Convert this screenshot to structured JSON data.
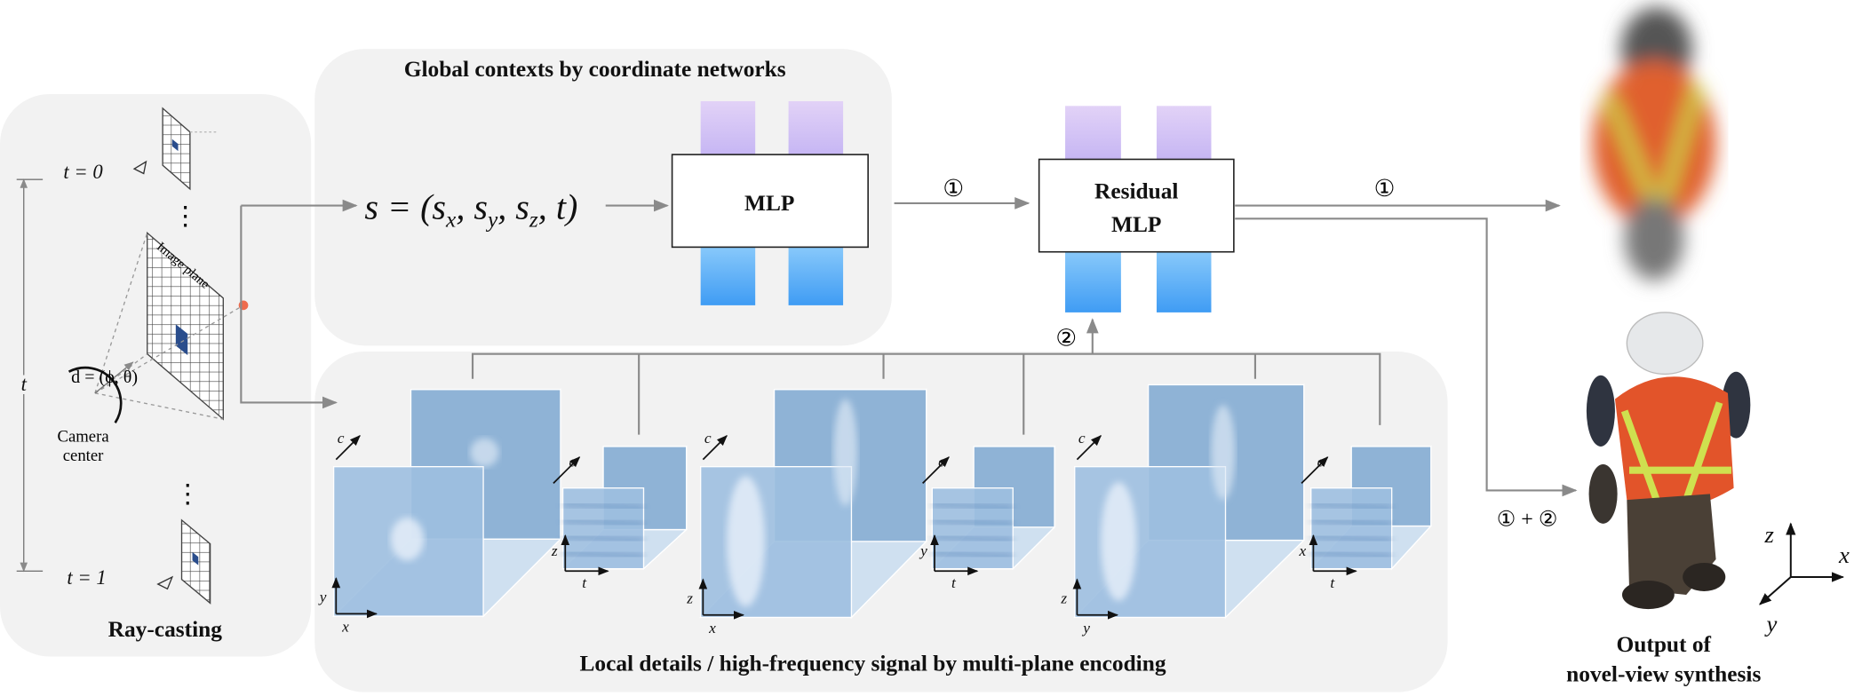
{
  "panels": {
    "global": "Global contexts by coordinate networks",
    "raycast": "Ray-casting",
    "local": "Local details / high-frequency signal by multi-plane encoding"
  },
  "formula": [
    "s = (s",
    "x",
    ", s",
    "y",
    ", s",
    "z",
    ", t)"
  ],
  "mlp": "MLP",
  "residual_mlp": [
    "Residual",
    "MLP"
  ],
  "arrows": {
    "mlp_to_residual": "①",
    "residual_to_output": "①",
    "planes_to_residual": "②",
    "combined": "① + ②"
  },
  "raycast": {
    "t0": "t = 0",
    "t1": "t = 1",
    "t": "t",
    "dots": "⋮",
    "image_plane": "Image plane",
    "direction": "d = (ϕ, θ)",
    "camera": [
      "Camera",
      "center"
    ]
  },
  "planes": [
    {
      "big_c": "c",
      "big_v": "y",
      "big_h": "x",
      "small_c": "c",
      "small_v": "z",
      "small_h": "t"
    },
    {
      "big_c": "c",
      "big_v": "z",
      "big_h": "x",
      "small_c": "c",
      "small_v": "y",
      "small_h": "t"
    },
    {
      "big_c": "c",
      "big_v": "z",
      "big_h": "y",
      "small_c": "c",
      "small_v": "x",
      "small_h": "t"
    }
  ],
  "output": [
    "Output of",
    "novel-view synthesis"
  ],
  "axes": {
    "z": "z",
    "x": "x",
    "y": "y"
  }
}
